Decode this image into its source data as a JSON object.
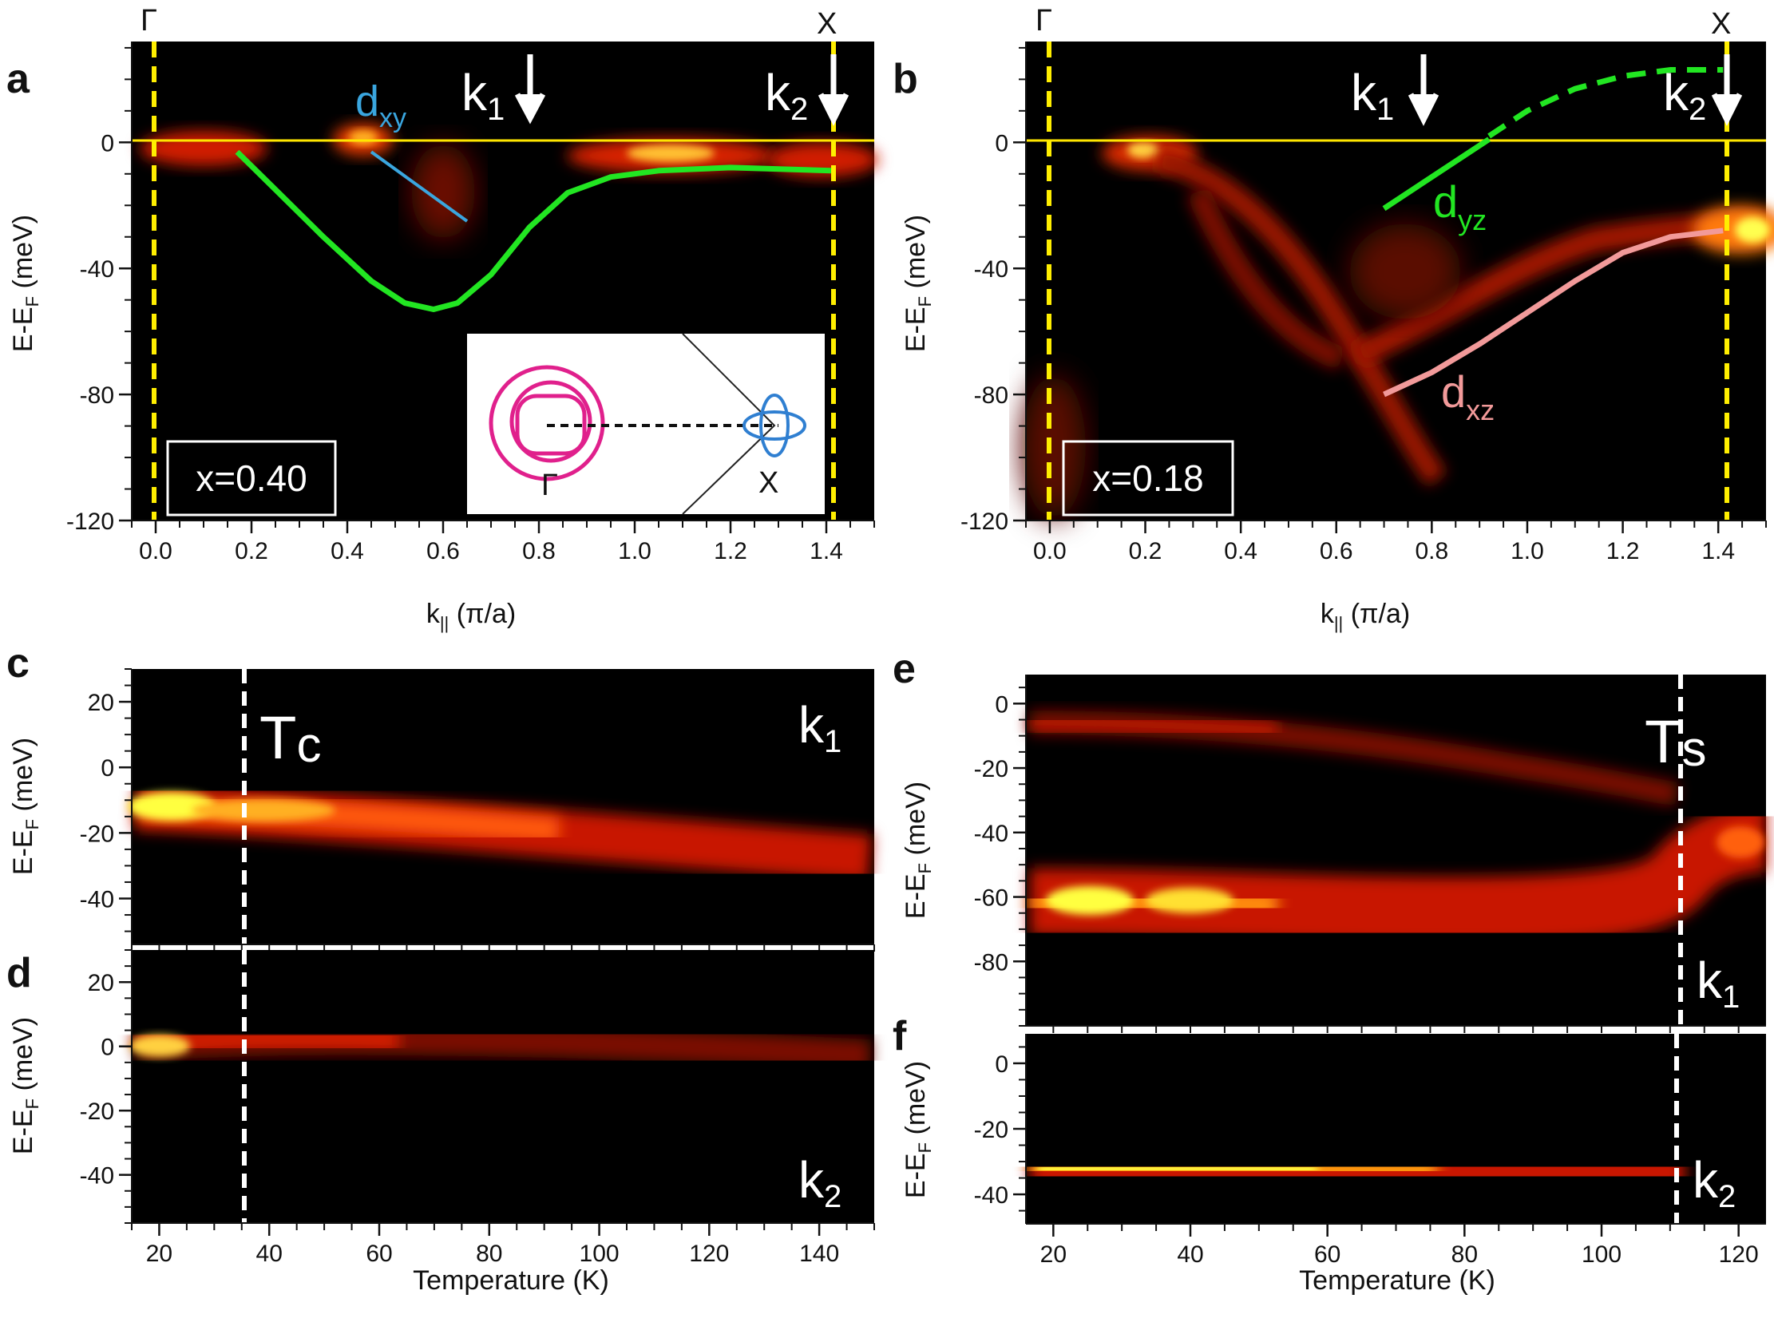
{
  "figure": {
    "panel_labels": [
      "a",
      "b",
      "c",
      "d",
      "e",
      "f"
    ],
    "sym_gamma": "Γ",
    "sym_x": "X",
    "k1_letter": "k",
    "k1_sub": "1",
    "k2_letter": "k",
    "k2_sub": "2",
    "axis_k_letter": "k",
    "axis_k_sub": "||",
    "axis_k_units": " (π/a)",
    "axis_e_main": "E-E",
    "axis_e_sub": "F",
    "axis_e_units": " (meV)",
    "axis_temperature": "Temperature (K)",
    "label_dxy_letter": "d",
    "label_dxy_sub": "xy",
    "label_dyz_letter": "d",
    "label_dyz_sub": "yz",
    "label_dxz_letter": "d",
    "label_dxz_sub": "xz",
    "label_tc_letter": "T",
    "label_tc_sub": "c",
    "label_ts_letter": "T",
    "label_ts_sub": "s",
    "doping_a": "x=0.40",
    "doping_b": "x=0.18",
    "inset_gamma": "Γ",
    "inset_x": "X"
  },
  "colors": {
    "background_map": "#000000",
    "intensity_red": "#c81400",
    "intensity_yellow": "#ffff3c",
    "fermi_line": "#ffe600",
    "dyz_band": "#22e622",
    "dxy_band": "#3aa6df",
    "dxz_band": "#f29a9a",
    "hole_pocket": "#e0208c",
    "electron_pocket": "#2f7fd1"
  },
  "chart_data": [
    {
      "panel": "a",
      "type": "heatmap",
      "xlabel": "k|| (π/a)",
      "ylabel": "E-EF (meV)",
      "xlim": [
        -0.05,
        1.5
      ],
      "ylim": [
        -120,
        32
      ],
      "xticks": [
        "0.0",
        "0.2",
        "0.4",
        "0.6",
        "0.8",
        "1.0",
        "1.2",
        "1.4"
      ],
      "yticks": [
        "0",
        "-40",
        "-80",
        "-120"
      ],
      "markers": {
        "gamma_k": 0.0,
        "x_k": 1.414,
        "k1": 0.79,
        "k2": 1.414
      },
      "series": [
        {
          "name": "dyz",
          "x": [
            0.17,
            0.25,
            0.35,
            0.45,
            0.52,
            0.58,
            0.63,
            0.7,
            0.78,
            0.86,
            0.95,
            1.05,
            1.2,
            1.41
          ],
          "y": [
            -3,
            -15,
            -30,
            -44,
            -51,
            -53,
            -51,
            -42,
            -27,
            -16,
            -11,
            -9,
            -8,
            -9
          ]
        },
        {
          "name": "dxy",
          "x": [
            0.45,
            0.65
          ],
          "y": [
            -3,
            -25
          ]
        }
      ]
    },
    {
      "panel": "b",
      "type": "heatmap",
      "xlabel": "k|| (π/a)",
      "ylabel": "E-EF (meV)",
      "xlim": [
        -0.05,
        1.5
      ],
      "ylim": [
        -120,
        32
      ],
      "xticks": [
        "0.0",
        "0.2",
        "0.4",
        "0.6",
        "0.8",
        "1.0",
        "1.2",
        "1.4"
      ],
      "yticks": [
        "0",
        "-40",
        "-80",
        "-120"
      ],
      "markers": {
        "gamma_k": 0.0,
        "x_k": 1.414,
        "k1": 0.79,
        "k2": 1.414
      },
      "series": [
        {
          "name": "dyz",
          "x": [
            0.7,
            0.92
          ],
          "y": [
            -21,
            1
          ]
        },
        {
          "name": "dyz-extrapolated",
          "x": [
            0.92,
            1.0,
            1.1,
            1.2,
            1.3,
            1.41
          ],
          "y": [
            2,
            10,
            17,
            21,
            23,
            23
          ]
        },
        {
          "name": "dxz",
          "x": [
            0.7,
            0.8,
            0.9,
            1.0,
            1.1,
            1.2,
            1.3,
            1.41
          ],
          "y": [
            -80,
            -73,
            -64,
            -54,
            -44,
            -35,
            -30,
            -28
          ]
        }
      ]
    },
    {
      "panel": "c",
      "type": "heatmap",
      "xlabel": "",
      "ylabel": "E-EF (meV)",
      "xlim": [
        15,
        150
      ],
      "ylim": [
        -54,
        30
      ],
      "yticks": [
        "20",
        "0",
        "-20",
        "-40"
      ],
      "markers": {
        "Tc": 35
      },
      "series": [
        {
          "name": "k1",
          "x": [
            15,
            40,
            80,
            120,
            150
          ],
          "y": [
            -15,
            -17,
            -20,
            -23,
            -24
          ]
        }
      ]
    },
    {
      "panel": "d",
      "type": "heatmap",
      "xlabel": "Temperature (K)",
      "ylabel": "E-EF (meV)",
      "xlim": [
        15,
        150
      ],
      "ylim": [
        -55,
        30
      ],
      "xticks": [
        "20",
        "40",
        "60",
        "80",
        "100",
        "120",
        "140"
      ],
      "yticks": [
        "20",
        "0",
        "-20",
        "-40"
      ],
      "markers": {
        "Tc": 35
      },
      "series": [
        {
          "name": "k2",
          "x": [
            15,
            40,
            80,
            120,
            150
          ],
          "y": [
            -9,
            -5,
            -5,
            -6,
            -7
          ]
        }
      ]
    },
    {
      "panel": "e",
      "type": "heatmap",
      "xlabel": "",
      "ylabel": "E-EF (meV)",
      "xlim": [
        16,
        124
      ],
      "ylim": [
        -100,
        9
      ],
      "yticks": [
        "0",
        "-20",
        "-40",
        "-60",
        "-80"
      ],
      "markers": {
        "Ts": 112
      },
      "series": [
        {
          "name": "upper",
          "x": [
            16,
            40,
            70,
            100,
            112
          ],
          "y": [
            -5,
            -7,
            -12,
            -22,
            -28
          ]
        },
        {
          "name": "lower",
          "x": [
            16,
            40,
            70,
            100,
            112,
            124
          ],
          "y": [
            -61,
            -60,
            -62,
            -60,
            -48,
            -42
          ]
        }
      ]
    },
    {
      "panel": "f",
      "type": "heatmap",
      "xlabel": "Temperature (K)",
      "ylabel": "E-EF (meV)",
      "xlim": [
        16,
        124
      ],
      "ylim": [
        -49,
        9
      ],
      "xticks": [
        "20",
        "40",
        "60",
        "80",
        "100",
        "120"
      ],
      "yticks": [
        "0",
        "-20",
        "-40"
      ],
      "markers": {
        "Ts": 112
      },
      "series": [
        {
          "name": "k2",
          "x": [
            16,
            40,
            70,
            100,
            112
          ],
          "y": [
            -29,
            -29,
            -28,
            -30,
            -30
          ]
        }
      ]
    }
  ]
}
